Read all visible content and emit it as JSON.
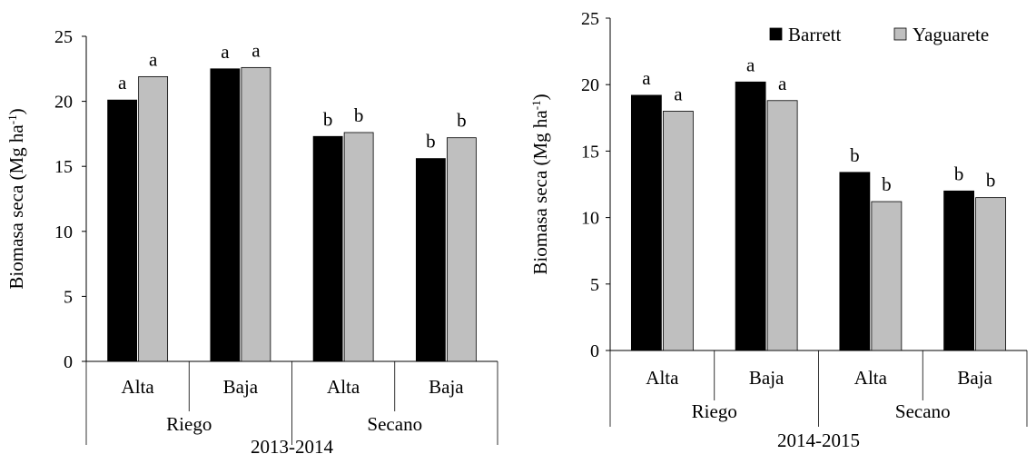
{
  "chart_data": [
    {
      "type": "bar",
      "period_label": "2013-2014",
      "ylabel": "Biomasa seca (Mg ha",
      "ylabel_sup": "-1",
      "ylabel_close": ")",
      "ylim": [
        0,
        25
      ],
      "yticks": [
        0,
        5,
        10,
        15,
        20,
        25
      ],
      "grid": false,
      "legend": false,
      "categories": [
        "Alta",
        "Baja",
        "Alta",
        "Baja"
      ],
      "groups": [
        {
          "label": "Riego",
          "span": [
            0,
            1
          ]
        },
        {
          "label": "Secano",
          "span": [
            2,
            3
          ]
        }
      ],
      "series": [
        {
          "name": "Barrett",
          "color": "#000000",
          "values": [
            20.1,
            22.5,
            17.3,
            15.6
          ],
          "letters": [
            "a",
            "a",
            "b",
            "b"
          ]
        },
        {
          "name": "Yaguarete",
          "color": "#bfbfbf",
          "values": [
            21.9,
            22.6,
            17.6,
            17.2
          ],
          "letters": [
            "a",
            "a",
            "b",
            "b"
          ]
        }
      ]
    },
    {
      "type": "bar",
      "period_label": "2014-2015",
      "ylabel": "Biomasa seca (Mg ha",
      "ylabel_sup": "-1",
      "ylabel_close": ")",
      "ylim": [
        0,
        25
      ],
      "yticks": [
        0,
        5,
        10,
        15,
        20,
        25
      ],
      "grid": false,
      "legend": "top-right",
      "categories": [
        "Alta",
        "Baja",
        "Alta",
        "Baja"
      ],
      "groups": [
        {
          "label": "Riego",
          "span": [
            0,
            1
          ]
        },
        {
          "label": "Secano",
          "span": [
            2,
            3
          ]
        }
      ],
      "series": [
        {
          "name": "Barrett",
          "color": "#000000",
          "values": [
            19.2,
            20.2,
            13.4,
            12.0
          ],
          "letters": [
            "a",
            "a",
            "b",
            "b"
          ]
        },
        {
          "name": "Yaguarete",
          "color": "#bfbfbf",
          "values": [
            18.0,
            18.8,
            11.2,
            11.5
          ],
          "letters": [
            "a",
            "a",
            "b",
            "b"
          ]
        }
      ]
    }
  ]
}
